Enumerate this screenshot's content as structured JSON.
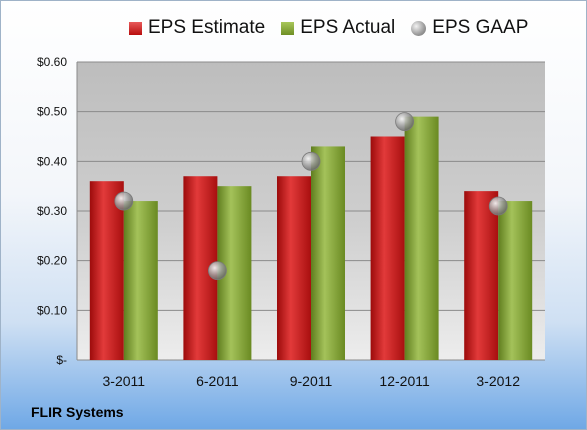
{
  "chart_data": {
    "type": "bar",
    "categories": [
      "3-2011",
      "6-2011",
      "9-2011",
      "12-2011",
      "3-2012"
    ],
    "series": [
      {
        "name": "EPS Estimate",
        "kind": "bar",
        "color": "#c81e1e",
        "values": [
          0.36,
          0.37,
          0.37,
          0.45,
          0.34
        ]
      },
      {
        "name": "EPS Actual",
        "kind": "bar",
        "color": "#86a53a",
        "values": [
          0.32,
          0.35,
          0.43,
          0.49,
          0.32
        ]
      },
      {
        "name": "EPS GAAP",
        "kind": "marker",
        "color": "#9a9a9a",
        "values": [
          0.32,
          0.18,
          0.4,
          0.48,
          0.31
        ]
      }
    ],
    "ylim": [
      0,
      0.6
    ],
    "yticks": [
      0,
      0.1,
      0.2,
      0.3,
      0.4,
      0.5,
      0.6
    ],
    "ytick_labels": [
      "$-",
      "$0.10",
      "$0.20",
      "$0.30",
      "$0.40",
      "$0.50",
      "$0.60"
    ],
    "grid": true,
    "legend_position": "top"
  },
  "footer_label": "FLIR Systems"
}
